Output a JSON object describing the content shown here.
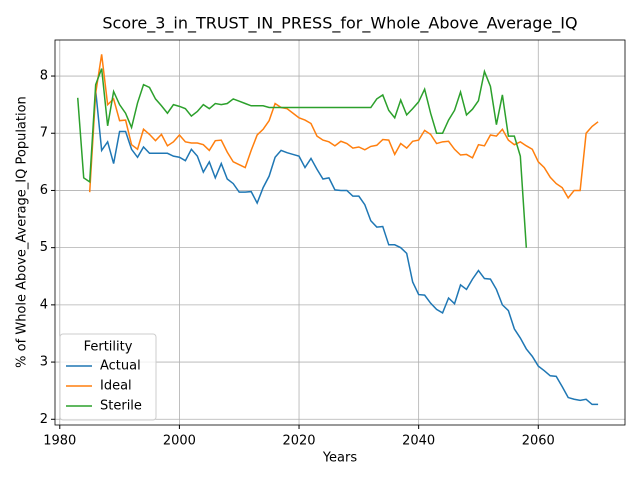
{
  "chart_data": {
    "type": "line",
    "title": "Score_3_in_TRUST_IN_PRESS_for_Whole_Above_Average_IQ",
    "xlabel": "Years",
    "ylabel": "% of Whole Above_Average_IQ Population",
    "legend_title": "Fertility",
    "legend": "lower left",
    "grid": true,
    "xlim": [
      1979.2,
      2074.5
    ],
    "ylim": [
      1.9,
      8.63
    ],
    "xticks": [
      1980,
      2000,
      2020,
      2040,
      2060
    ],
    "yticks": [
      2,
      3,
      4,
      5,
      6,
      7,
      8
    ],
    "x": [
      1983,
      1984,
      1985,
      1986,
      1987,
      1988,
      1989,
      1990,
      1991,
      1992,
      1993,
      1994,
      1995,
      1996,
      1997,
      1998,
      1999,
      2000,
      2001,
      2002,
      2003,
      2004,
      2005,
      2006,
      2007,
      2008,
      2009,
      2010,
      2011,
      2012,
      2013,
      2014,
      2015,
      2016,
      2017,
      2018,
      2019,
      2020,
      2021,
      2022,
      2023,
      2024,
      2025,
      2026,
      2027,
      2028,
      2029,
      2030,
      2031,
      2032,
      2033,
      2034,
      2035,
      2036,
      2037,
      2038,
      2039,
      2040,
      2041,
      2042,
      2043,
      2044,
      2045,
      2046,
      2047,
      2048,
      2049,
      2050,
      2051,
      2052,
      2053,
      2054,
      2055,
      2056,
      2057,
      2058,
      2059,
      2060,
      2061,
      2062,
      2063,
      2064,
      2065,
      2066,
      2067,
      2068,
      2069,
      2070
    ],
    "series": [
      {
        "name": "Actual",
        "color": "#1f77b4",
        "values": [
          null,
          null,
          null,
          7.75,
          6.7,
          6.85,
          6.47,
          7.03,
          7.03,
          6.72,
          6.58,
          6.76,
          6.65,
          6.65,
          6.65,
          6.65,
          6.6,
          6.58,
          6.52,
          6.72,
          6.6,
          6.32,
          6.5,
          6.22,
          6.47,
          6.2,
          6.12,
          5.97,
          5.97,
          5.98,
          5.78,
          6.05,
          6.25,
          6.58,
          6.7,
          6.66,
          6.63,
          6.6,
          6.4,
          6.56,
          6.37,
          6.2,
          6.22,
          6.01,
          6.0,
          6.0,
          5.9,
          5.9,
          5.75,
          5.47,
          5.36,
          5.37,
          5.05,
          5.05,
          5.0,
          4.9,
          4.4,
          4.18,
          4.17,
          4.03,
          3.92,
          3.86,
          4.12,
          4.02,
          4.35,
          4.27,
          4.45,
          4.6,
          4.46,
          4.45,
          4.27,
          4.0,
          3.9,
          3.58,
          3.42,
          3.23,
          3.1,
          2.93,
          2.85,
          2.76,
          2.75,
          2.57,
          2.38,
          2.35,
          2.33,
          2.35,
          2.26,
          2.26
        ]
      },
      {
        "name": "Ideal",
        "color": "#ff7f0e",
        "values": [
          null,
          null,
          5.97,
          7.7,
          8.38,
          7.5,
          7.6,
          7.22,
          7.23,
          6.8,
          6.72,
          7.07,
          6.98,
          6.87,
          6.98,
          6.78,
          6.85,
          6.97,
          6.85,
          6.83,
          6.83,
          6.8,
          6.7,
          6.87,
          6.88,
          6.67,
          6.5,
          6.45,
          6.4,
          6.7,
          6.97,
          7.07,
          7.22,
          7.52,
          7.45,
          7.43,
          7.35,
          7.27,
          7.23,
          7.17,
          6.95,
          6.88,
          6.85,
          6.78,
          6.86,
          6.82,
          6.74,
          6.76,
          6.71,
          6.77,
          6.79,
          6.89,
          6.88,
          6.63,
          6.82,
          6.74,
          6.86,
          6.88,
          7.05,
          6.98,
          6.82,
          6.85,
          6.86,
          6.72,
          6.62,
          6.63,
          6.57,
          6.8,
          6.78,
          6.97,
          6.95,
          7.07,
          6.88,
          6.8,
          6.85,
          6.78,
          6.72,
          6.5,
          6.4,
          6.23,
          6.12,
          6.05,
          5.87,
          6.0,
          6.0,
          7.0,
          7.12,
          7.2
        ]
      },
      {
        "name": "Sterile",
        "color": "#2ca02c",
        "values": [
          7.62,
          6.22,
          6.15,
          7.85,
          8.13,
          7.13,
          7.73,
          7.5,
          7.35,
          7.1,
          7.53,
          7.85,
          7.8,
          7.6,
          7.48,
          7.35,
          7.5,
          7.47,
          7.43,
          7.3,
          7.38,
          7.5,
          7.43,
          7.52,
          7.5,
          7.52,
          7.6,
          7.56,
          7.52,
          7.48,
          7.48,
          7.48,
          7.45,
          7.45,
          7.45,
          7.45,
          7.45,
          7.45,
          7.45,
          7.45,
          7.45,
          7.45,
          7.45,
          7.45,
          7.45,
          7.45,
          7.45,
          7.45,
          7.45,
          7.45,
          7.6,
          7.67,
          7.4,
          7.27,
          7.58,
          7.32,
          7.43,
          7.55,
          7.77,
          7.35,
          7.0,
          7.0,
          7.23,
          7.4,
          7.72,
          7.32,
          7.42,
          7.57,
          8.08,
          7.82,
          7.15,
          7.67,
          6.95,
          6.95,
          6.6,
          5.0,
          null,
          null,
          null,
          null,
          null,
          null,
          null,
          null,
          null,
          null,
          null,
          null
        ]
      }
    ]
  }
}
